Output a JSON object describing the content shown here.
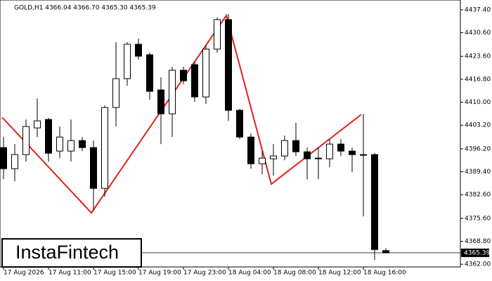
{
  "chart_data": {
    "type": "candlestick",
    "title": "GOLD,H1  4366.04 4366.70 4365.30 4365.39",
    "watermark": "InstaFintech",
    "categories": [
      "17 Aug 2026",
      null,
      null,
      null,
      "17 Aug 11:00",
      null,
      null,
      null,
      "17 Aug 15:00",
      null,
      null,
      null,
      "17 Aug 19:00",
      null,
      null,
      null,
      "17 Aug 23:00",
      null,
      null,
      null,
      "18 Aug 04:00",
      null,
      null,
      null,
      "18 Aug 08:00",
      null,
      null,
      null,
      "18 Aug 12:00",
      null,
      null,
      null,
      "18 Aug 16:00",
      null,
      null
    ],
    "open": [
      4396.57,
      4390.32,
      4394.49,
      4402.4,
      4404.9,
      4395.53,
      4395.53,
      4398.65,
      4396.57,
      4384.49,
      4408.44,
      4416.99,
      4427.19,
      4424.07,
      4413.65,
      4406.57,
      4419.49,
      4421.15,
      4411.57,
      4425.74,
      4434.49,
      4407.61,
      4399.69,
      4391.78,
      4393.24,
      4394.07,
      4398.65,
      4395.32,
      4393.24,
      4393.24,
      4397.61,
      4395.53,
      4394.28,
      4394.49,
      4366.04
    ],
    "high": [
      4399.69,
      4397.61,
      4404.9,
      4411.15,
      4405.32,
      4402.82,
      4404.9,
      4399.69,
      4398.65,
      4409.07,
      4427.82,
      4427.82,
      4428.86,
      4424.7,
      4417.4,
      4420.53,
      4420.53,
      4421.99,
      4426.78,
      4435.11,
      4436.15,
      4408.03,
      4400.74,
      4395.53,
      4397.61,
      4400.11,
      4403.86,
      4396.57,
      4396.57,
      4399.07,
      4399.07,
      4396.57,
      4406.57,
      4394.9,
      4366.7
    ],
    "low": [
      4387.19,
      4386.57,
      4392.4,
      4399.69,
      4392.4,
      4393.45,
      4392.4,
      4395.53,
      4377.82,
      4381.99,
      4402.82,
      4414.9,
      4422.61,
      4410.74,
      4397.61,
      4399.69,
      4415.32,
      4410.11,
      4409.49,
      4424.7,
      4404.49,
      4399.07,
      4390.32,
      4388.65,
      4388.24,
      4392.82,
      4394.07,
      4387.19,
      4387.19,
      4390.74,
      4394.07,
      4389.28,
      4376.15,
      4363.24,
      4365.3
    ],
    "close": [
      4390.32,
      4394.49,
      4402.82,
      4404.49,
      4394.9,
      4399.69,
      4398.65,
      4396.57,
      4384.49,
      4408.44,
      4416.99,
      4427.19,
      4423.65,
      4413.24,
      4406.57,
      4419.49,
      4416.36,
      4411.57,
      4425.74,
      4434.49,
      4407.61,
      4399.69,
      4391.78,
      4393.45,
      4394.07,
      4398.65,
      4395.32,
      4393.24,
      4393.45,
      4397.61,
      4395.53,
      4394.49,
      4394.49,
      4366.36,
      4365.39
    ],
    "up_color": "#ffffff",
    "down_color": "#000000",
    "pattern_color": "#e02020",
    "last_price": 4365.39,
    "ylim": [
      4361.2,
      4440.3
    ],
    "yticks": [
      {
        "value": 4437.4,
        "label": "4437.40"
      },
      {
        "value": 4430.6,
        "label": "4430.60"
      },
      {
        "value": 4423.6,
        "label": "4423.60"
      },
      {
        "value": 4416.8,
        "label": "4416.80"
      },
      {
        "value": 4410,
        "label": "4410.00"
      },
      {
        "value": 4403.2,
        "label": "4403.20"
      },
      {
        "value": 4396.2,
        "label": "4396.20"
      },
      {
        "value": 4389.4,
        "label": "4389.40"
      },
      {
        "value": 4382.6,
        "label": "4382.60"
      },
      {
        "value": 4375.6,
        "label": "4375.60"
      },
      {
        "value": 4368.8,
        "label": "4368.80"
      },
      {
        "value": 4362,
        "label": "4362.00"
      }
    ]
  }
}
